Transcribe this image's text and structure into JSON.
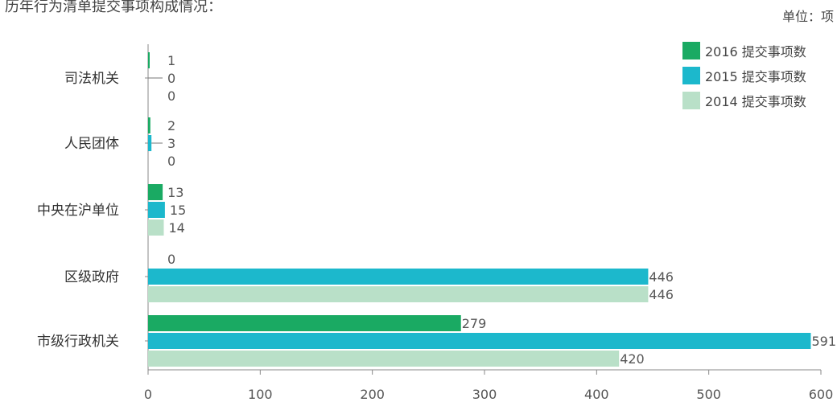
{
  "chart_data": {
    "type": "bar",
    "orientation": "horizontal",
    "title": "历年行为清单提交事项构成情况：",
    "unit_label": "单位：项",
    "categories": [
      "司法机关",
      "人民团体",
      "中央在沪单位",
      "区级政府",
      "市级行政机关"
    ],
    "series": [
      {
        "name": "2016 提交事项数",
        "color": "#1aaa63",
        "values": [
          1,
          2,
          13,
          0,
          279
        ]
      },
      {
        "name": "2015 提交事项数",
        "color": "#1cb8cc",
        "values": [
          0,
          3,
          15,
          446,
          591
        ]
      },
      {
        "name": "2014 提交事项数",
        "color": "#b9e0c8",
        "values": [
          0,
          0,
          14,
          446,
          420
        ]
      }
    ],
    "xlim": [
      0,
      600
    ],
    "xticks": [
      0,
      100,
      200,
      300,
      400,
      500,
      600
    ],
    "legend_position": "top-right",
    "grid": false
  }
}
